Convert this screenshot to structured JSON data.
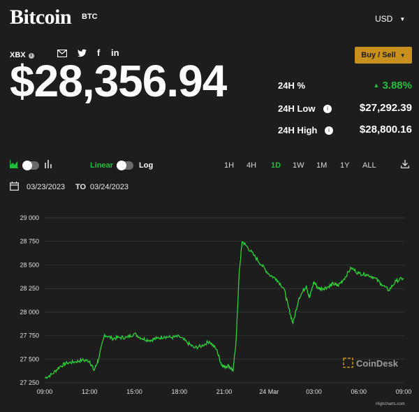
{
  "header": {
    "title": "Bitcoin",
    "ticker": "BTC",
    "currency": "USD",
    "exchange": "XBX",
    "share_icons": [
      "mail-icon",
      "twitter-icon",
      "facebook-icon",
      "linkedin-icon"
    ]
  },
  "price": "$28,356.94",
  "buy_sell_label": "Buy / Sell",
  "stats": {
    "change_label": "24H %",
    "change_value": "3.88%",
    "low_label": "24H Low",
    "low_value": "$27,292.39",
    "high_label": "24H High",
    "high_value": "$28,800.16"
  },
  "controls": {
    "linear_label": "Linear",
    "log_label": "Log",
    "ranges": [
      "1H",
      "4H",
      "1D",
      "1W",
      "1M",
      "1Y",
      "ALL"
    ],
    "active_range": "1D"
  },
  "date_range": {
    "from": "03/23/2023",
    "to_label": "TO",
    "to": "03/24/2023"
  },
  "colors": {
    "background": "#1d1d1d",
    "accent_green": "#1fbf3c",
    "buy_button": "#c8901c",
    "line": "#2fd23a"
  },
  "watermark": "CoinDesk",
  "credit": "Highcharts.com",
  "chart_data": {
    "type": "line",
    "ylim": [
      27250,
      29000
    ],
    "yticks": [
      "29 000",
      "28 750",
      "28 500",
      "28 250",
      "28 000",
      "27 750",
      "27 500",
      "27 250"
    ],
    "xticks": [
      "09:00",
      "12:00",
      "15:00",
      "18:00",
      "21:00",
      "24 Mar",
      "03:00",
      "06:00",
      "09:00"
    ],
    "x_hours": [
      0,
      0.5,
      1,
      1.5,
      2,
      2.5,
      3,
      3.3,
      3.6,
      4,
      4.5,
      5,
      5.5,
      6,
      6.5,
      7,
      7.5,
      8,
      8.5,
      9,
      9.5,
      10,
      10.5,
      11,
      11.5,
      11.8,
      12,
      12.3,
      12.6,
      12.8,
      13,
      13.2,
      13.5,
      14,
      14.5,
      15,
      15.5,
      16,
      16.3,
      16.6,
      17,
      17.5,
      17.7,
      18,
      18.3,
      18.6,
      19,
      19.3,
      19.6,
      20,
      20.5,
      21,
      21.5,
      22,
      22.5,
      23,
      23.5,
      24
    ],
    "y_values": [
      27300,
      27340,
      27420,
      27460,
      27470,
      27490,
      27480,
      27380,
      27500,
      27760,
      27720,
      27730,
      27730,
      27770,
      27720,
      27700,
      27720,
      27740,
      27730,
      27740,
      27680,
      27620,
      27640,
      27690,
      27600,
      27450,
      27420,
      27430,
      27380,
      27700,
      28400,
      28750,
      28700,
      28600,
      28500,
      28400,
      28350,
      28250,
      28050,
      27880,
      28150,
      28280,
      28150,
      28320,
      28250,
      28250,
      28270,
      28300,
      28280,
      28350,
      28470,
      28410,
      28400,
      28370,
      28300,
      28230,
      28330,
      28360
    ]
  }
}
